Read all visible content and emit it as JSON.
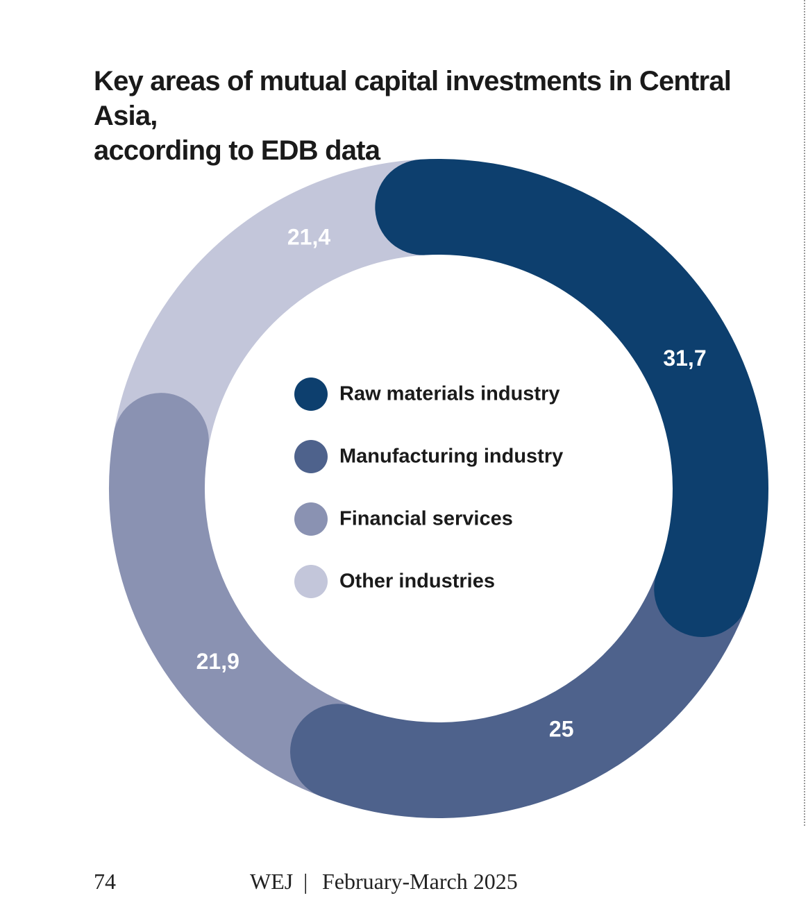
{
  "title_lines": [
    "Key areas of mutual capital investments in Central Asia,",
    "according to EDB data"
  ],
  "chart_data": {
    "type": "pie",
    "style": "donut",
    "categories": [
      "Raw materials industry",
      "Manufacturing industry",
      "Financial services",
      "Other industries"
    ],
    "values": [
      31.7,
      25,
      21.9,
      21.4
    ],
    "value_labels": [
      "31,7",
      "25",
      "21,9",
      "21,4"
    ],
    "colors": [
      "#0d3f6e",
      "#4e628c",
      "#8a92b2",
      "#c3c6da"
    ],
    "legend_position": "center"
  },
  "footer": {
    "page_number": "74",
    "publication": "WEJ",
    "separator": "|",
    "issue": "February-March 2025"
  }
}
